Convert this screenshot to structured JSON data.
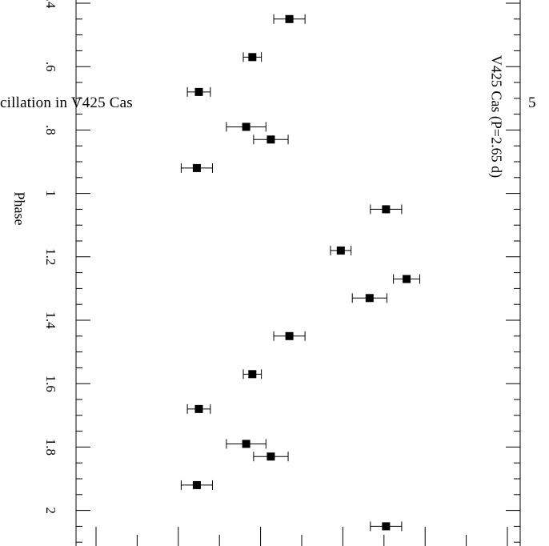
{
  "page": {
    "header_text": "cillation in V425 Cas",
    "page_number": "5"
  },
  "chart_data": {
    "type": "scatter",
    "title": "V425 Cas (P=2.65 d)",
    "xlabel": "Phase",
    "orientation": "rotated-90",
    "phase_range": [
      0.4,
      2.1
    ],
    "value_range": [
      0,
      10
    ],
    "phase_ticks": [
      ".6",
      ".8",
      "1",
      "1.2",
      "1.4",
      "1.6",
      "1.8",
      "2"
    ],
    "grid": false,
    "legend": "none",
    "marker": "filled-square",
    "error_bars": "horizontal",
    "points": [
      {
        "phase": 0.45,
        "value": 4.7,
        "err": 0.38
      },
      {
        "phase": 0.57,
        "value": 3.8,
        "err": 0.22
      },
      {
        "phase": 0.68,
        "value": 2.5,
        "err": 0.28
      },
      {
        "phase": 0.79,
        "value": 3.65,
        "err": 0.48
      },
      {
        "phase": 0.83,
        "value": 4.25,
        "err": 0.42
      },
      {
        "phase": 0.92,
        "value": 2.45,
        "err": 0.38
      },
      {
        "phase": 1.05,
        "value": 7.05,
        "err": 0.38
      },
      {
        "phase": 1.18,
        "value": 5.95,
        "err": 0.25
      },
      {
        "phase": 1.27,
        "value": 7.55,
        "err": 0.32
      },
      {
        "phase": 1.33,
        "value": 6.65,
        "err": 0.42
      },
      {
        "phase": 1.45,
        "value": 4.7,
        "err": 0.38
      },
      {
        "phase": 1.57,
        "value": 3.8,
        "err": 0.22
      },
      {
        "phase": 1.68,
        "value": 2.5,
        "err": 0.28
      },
      {
        "phase": 1.79,
        "value": 3.65,
        "err": 0.48
      },
      {
        "phase": 1.83,
        "value": 4.25,
        "err": 0.42
      },
      {
        "phase": 1.92,
        "value": 2.45,
        "err": 0.38
      },
      {
        "phase": 2.05,
        "value": 7.05,
        "err": 0.38
      }
    ]
  }
}
